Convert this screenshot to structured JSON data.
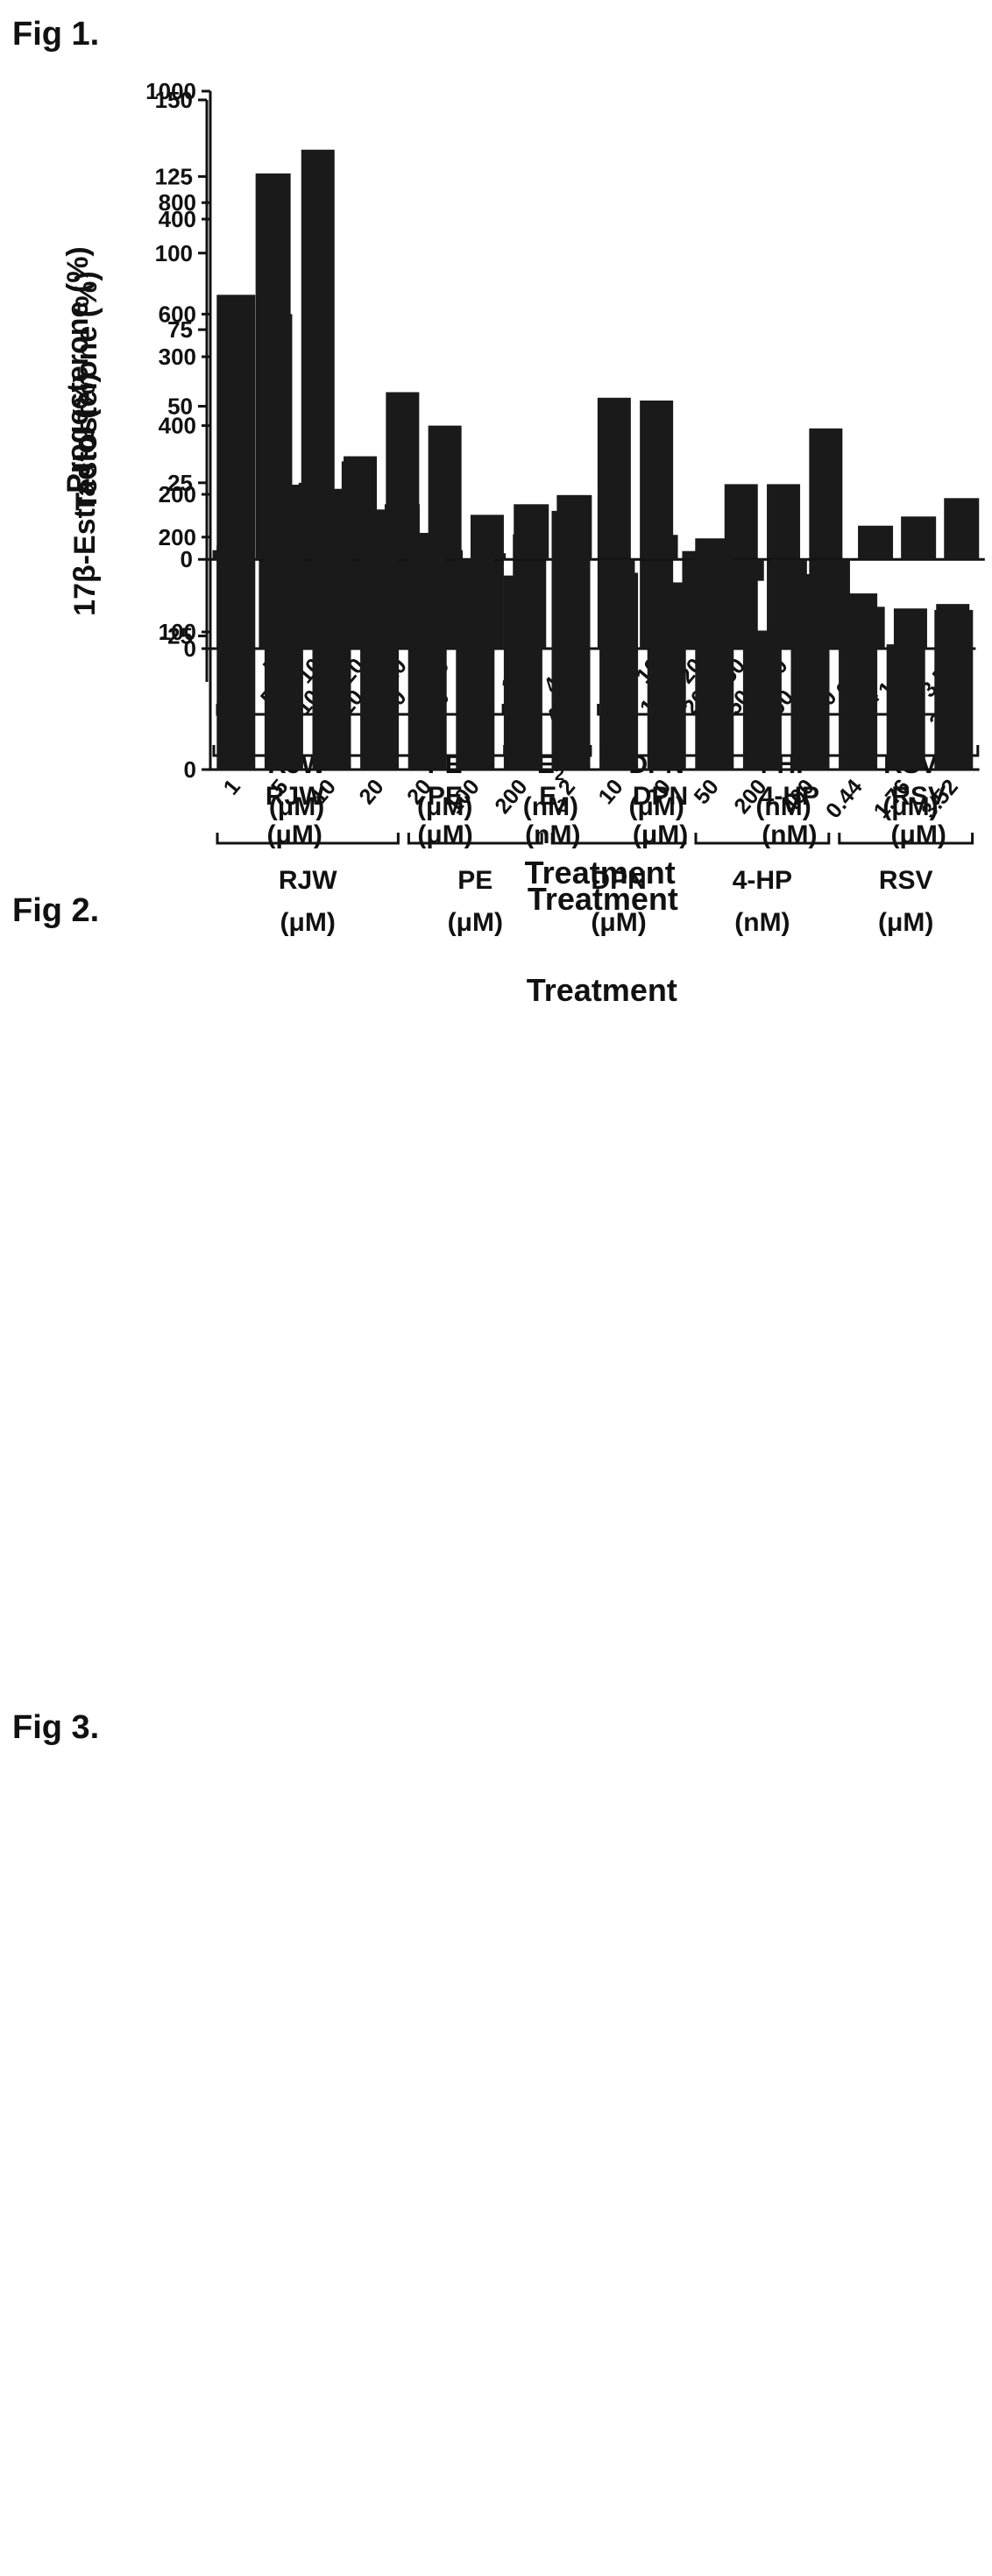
{
  "figures": [
    {
      "label": "Fig 1."
    },
    {
      "label": "Fig 2."
    },
    {
      "label": "Fig 3."
    }
  ],
  "chart_data": [
    {
      "type": "bar",
      "title": "",
      "ylabel": "Progesterone (%)",
      "xlabel": "Treatment",
      "ylim": [
        0,
        1000
      ],
      "yticks": [
        0,
        200,
        400,
        600,
        800,
        1000
      ],
      "grid": false,
      "categories": [
        "1",
        "5",
        "10",
        "20",
        "20",
        "100",
        "200",
        "100",
        "400",
        "2",
        "10",
        "20",
        "50",
        "200",
        "400",
        "0.44",
        "1.76",
        "3.52"
      ],
      "values": [
        185,
        600,
        895,
        345,
        460,
        400,
        240,
        205,
        75,
        450,
        445,
        175,
        295,
        295,
        395,
        75,
        72,
        80
      ],
      "groups": [
        {
          "name": "RJW",
          "unit": "(μM)",
          "start": 0,
          "end": 3
        },
        {
          "name": "PE",
          "unit": "(μM)",
          "start": 4,
          "end": 6
        },
        {
          "name": "E",
          "sub": "2",
          "unit": "(nM)",
          "start": 7,
          "end": 8
        },
        {
          "name": "DPN",
          "unit": "(μM)",
          "start": 9,
          "end": 11
        },
        {
          "name": "4-HP",
          "unit": "(nM)",
          "start": 12,
          "end": 14
        },
        {
          "name": "RSV",
          "unit": "(μM)",
          "start": 15,
          "end": 17
        }
      ]
    },
    {
      "type": "bar",
      "title": "",
      "ylabel": "Testosterone (%)",
      "xlabel": "Treatment",
      "ylim": [
        -40,
        150
      ],
      "yticks": [
        -25,
        0,
        25,
        50,
        75,
        100,
        125,
        150
      ],
      "grid": false,
      "categories": [
        "1",
        "5",
        "10",
        "20",
        "20",
        "100",
        "200",
        "100",
        "400",
        "2",
        "10",
        "20",
        "50",
        "200",
        "400",
        "0.44",
        "1.76",
        "3.52"
      ],
      "values": [
        3,
        126,
        25,
        32,
        18,
        3,
        2,
        18,
        21,
        -8,
        8,
        -5,
        -7,
        -27,
        -25,
        11,
        14,
        20
      ],
      "groups": [
        {
          "name": "RJW",
          "unit": "(μM)",
          "start": 0,
          "end": 3
        },
        {
          "name": "PE",
          "unit": "(μM)",
          "start": 4,
          "end": 6
        },
        {
          "name": "E",
          "sub": "2",
          "unit": "(nM)",
          "start": 7,
          "end": 8
        },
        {
          "name": "DPN",
          "unit": "(μM)",
          "start": 9,
          "end": 11
        },
        {
          "name": "4-HP",
          "unit": "(nM)",
          "start": 12,
          "end": 14
        },
        {
          "name": "RSV",
          "unit": "(μM)",
          "start": 15,
          "end": 17
        }
      ]
    },
    {
      "type": "bar",
      "title": "",
      "ylabel": "17β-Estradiol (%)",
      "xlabel": "Treatment",
      "ylim": [
        0,
        400
      ],
      "yticks": [
        0,
        100,
        200,
        300,
        400
      ],
      "grid": false,
      "categories": [
        "1",
        "5",
        "10",
        "20",
        "20",
        "100",
        "200",
        "2",
        "10",
        "20",
        "50",
        "200",
        "400",
        "0.44",
        "1.76",
        "3.52"
      ],
      "values": [
        345,
        207,
        204,
        189,
        172,
        153,
        141,
        188,
        143,
        136,
        168,
        101,
        142,
        128,
        91,
        116
      ],
      "groups": [
        {
          "name": "RJW",
          "unit": "(μM)",
          "start": 0,
          "end": 3
        },
        {
          "name": "PE",
          "unit": "(μM)",
          "start": 4,
          "end": 6
        },
        {
          "name": "DPN",
          "unit": "(μM)",
          "start": 7,
          "end": 9
        },
        {
          "name": "4-HP",
          "unit": "(nM)",
          "start": 10,
          "end": 12
        },
        {
          "name": "RSV",
          "unit": "(μM)",
          "start": 13,
          "end": 15
        }
      ]
    }
  ]
}
